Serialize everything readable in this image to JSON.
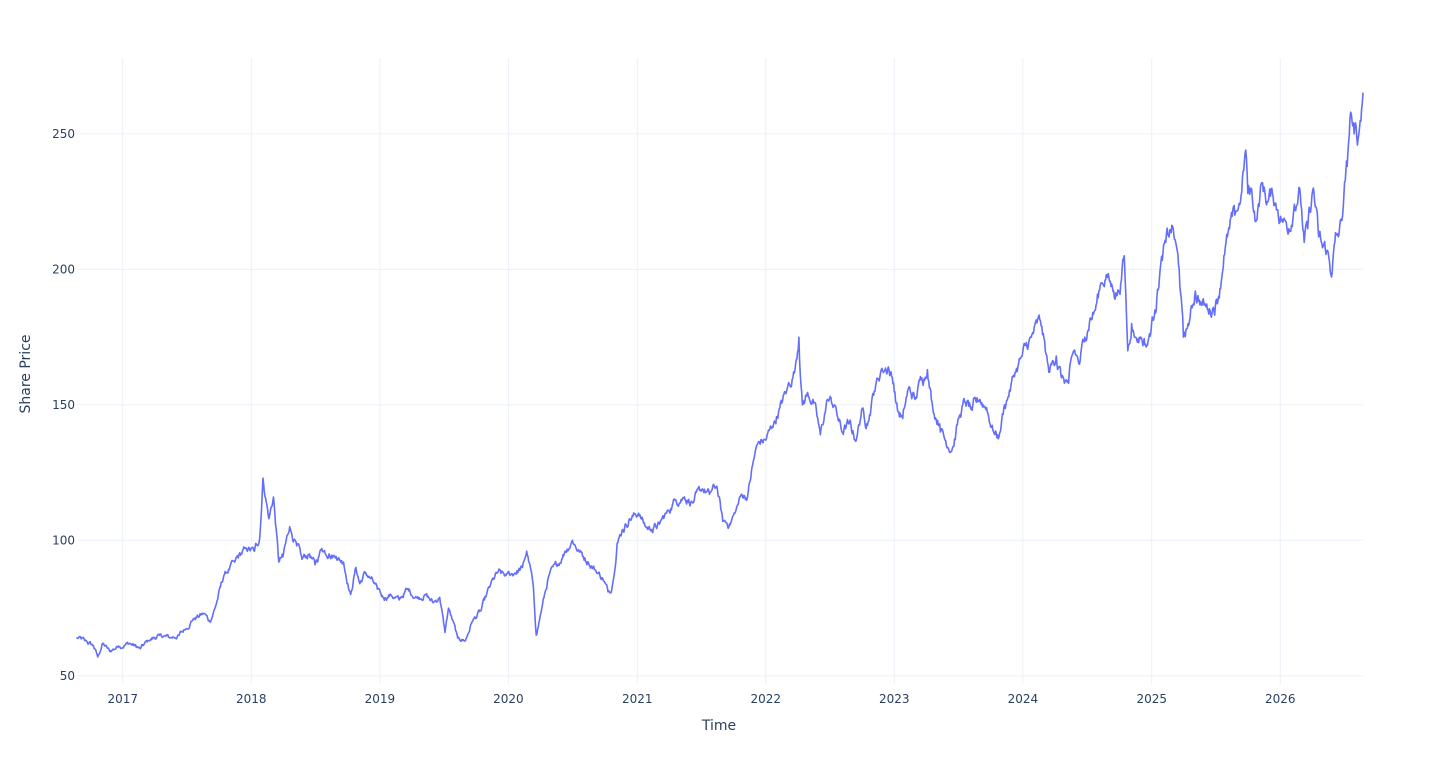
{
  "chart_data": {
    "type": "line",
    "title": "",
    "xlabel": "Time",
    "ylabel": "Share Price",
    "xlim": [
      "2016-08-24",
      "2026-08-24"
    ],
    "ylim": [
      47,
      278
    ],
    "x_ticks": [
      "2017",
      "2018",
      "2019",
      "2020",
      "2021",
      "2022",
      "2023",
      "2024",
      "2025",
      "2026"
    ],
    "y_ticks": [
      50,
      100,
      150,
      200,
      250
    ],
    "grid": true,
    "legend": "none",
    "line_color": "#636efa",
    "series": [
      {
        "x": [
          "2016-08-24",
          "2016-09-15",
          "2016-10-10",
          "2016-10-22",
          "2016-11-05",
          "2016-11-25",
          "2016-12-20",
          "2017-01-20",
          "2017-02-20",
          "2017-03-15",
          "2017-04-15",
          "2017-05-15",
          "2017-06-10",
          "2017-06-25",
          "2017-07-20",
          "2017-08-20",
          "2017-09-05",
          "2017-09-20",
          "2017-10-15",
          "2017-11-15",
          "2017-12-15",
          "2018-01-10",
          "2018-01-25",
          "2018-02-03",
          "2018-02-20",
          "2018-03-05",
          "2018-03-20",
          "2018-04-01",
          "2018-04-20",
          "2018-05-10",
          "2018-05-25",
          "2018-06-15",
          "2018-07-01",
          "2018-07-20",
          "2018-08-10",
          "2018-08-30",
          "2018-09-20",
          "2018-10-10",
          "2018-10-25",
          "2018-11-05",
          "2018-11-20",
          "2018-12-05",
          "2018-12-25",
          "2019-01-10",
          "2019-02-01",
          "2019-02-25",
          "2019-03-20",
          "2019-04-15",
          "2019-05-10",
          "2019-06-01",
          "2019-06-20",
          "2019-07-05",
          "2019-07-15",
          "2019-08-10",
          "2019-09-01",
          "2019-09-20",
          "2019-10-15",
          "2019-11-10",
          "2019-12-01",
          "2019-12-25",
          "2020-01-20",
          "2020-02-10",
          "2020-02-22",
          "2020-03-10",
          "2020-03-20",
          "2020-04-05",
          "2020-04-25",
          "2020-05-20",
          "2020-06-10",
          "2020-07-01",
          "2020-07-20",
          "2020-08-15",
          "2020-09-05",
          "2020-09-25",
          "2020-10-10",
          "2020-10-22",
          "2020-11-05",
          "2020-11-20",
          "2020-12-10",
          "2021-01-05",
          "2021-01-25",
          "2021-02-10",
          "2021-03-05",
          "2021-03-25",
          "2021-04-20",
          "2021-05-15",
          "2021-06-10",
          "2021-07-05",
          "2021-07-25",
          "2021-08-15",
          "2021-09-01",
          "2021-09-20",
          "2021-10-05",
          "2021-10-25",
          "2021-11-10",
          "2021-11-25",
          "2021-12-10",
          "2022-01-01",
          "2022-01-20",
          "2022-02-10",
          "2022-03-01",
          "2022-03-25",
          "2022-04-05",
          "2022-04-15",
          "2022-04-28",
          "2022-05-15",
          "2022-06-05",
          "2022-06-25",
          "2022-07-15",
          "2022-08-05",
          "2022-08-25",
          "2022-09-15",
          "2022-09-30",
          "2022-10-15",
          "2022-11-05",
          "2022-11-25",
          "2022-12-15",
          "2022-12-30",
          "2023-01-10",
          "2023-01-25",
          "2023-02-10",
          "2023-03-01",
          "2023-03-20",
          "2023-04-05",
          "2023-04-20",
          "2023-05-10",
          "2023-05-25",
          "2023-06-15",
          "2023-07-05",
          "2023-07-20",
          "2023-08-10",
          "2023-09-01",
          "2023-09-20",
          "2023-10-10",
          "2023-10-25",
          "2023-11-10",
          "2023-11-20",
          "2023-12-10",
          "2023-12-30",
          "2024-01-25",
          "2024-02-20",
          "2024-03-15",
          "2024-04-05",
          "2024-04-20",
          "2024-05-10",
          "2024-05-25",
          "2024-06-10",
          "2024-06-25",
          "2024-07-10",
          "2024-07-25",
          "2024-08-10",
          "2024-08-25",
          "2024-09-15",
          "2024-10-01",
          "2024-10-15",
          "2024-10-25",
          "2024-11-05",
          "2024-11-15",
          "2024-12-01",
          "2024-12-20",
          "2025-01-10",
          "2025-01-25",
          "2025-02-10",
          "2025-03-01",
          "2025-03-20",
          "2025-04-01",
          "2025-04-10",
          "2025-04-20",
          "2025-05-05",
          "2025-05-20",
          "2025-06-10",
          "2025-06-25",
          "2025-07-10",
          "2025-07-25",
          "2025-08-10",
          "2025-08-25",
          "2025-09-10",
          "2025-09-25",
          "2025-10-01",
          "2025-10-10",
          "2025-10-25",
          "2025-11-10",
          "2025-11-25",
          "2025-12-10",
          "2025-12-25",
          "2026-01-10",
          "2026-01-25",
          "2026-02-10",
          "2026-02-25",
          "2026-03-10",
          "2026-03-20",
          "2026-04-05",
          "2026-04-20",
          "2026-05-01",
          "2026-05-15",
          "2026-05-25",
          "2026-06-05",
          "2026-06-15",
          "2026-06-25",
          "2026-07-01",
          "2026-07-10",
          "2026-07-20",
          "2026-07-30",
          "2026-08-10",
          "2026-08-24"
        ],
        "y": [
          64,
          63,
          61,
          57,
          62,
          59,
          61,
          62,
          60,
          63,
          65,
          64,
          65,
          67,
          71,
          73,
          70,
          75,
          87,
          92,
          97,
          96,
          101,
          123,
          108,
          116,
          92,
          94,
          105,
          98,
          93,
          95,
          91,
          97,
          95,
          94,
          92,
          80,
          90,
          84,
          88,
          86,
          82,
          79,
          80,
          78,
          82,
          79,
          80,
          77,
          79,
          66,
          75,
          64,
          63,
          70,
          74,
          83,
          88,
          87,
          88,
          90,
          96,
          85,
          65,
          75,
          87,
          91,
          96,
          100,
          96,
          92,
          89,
          86,
          81,
          83,
          99,
          104,
          108,
          110,
          105,
          104,
          106,
          110,
          115,
          116,
          114,
          119,
          117,
          120,
          107,
          106,
          110,
          117,
          116,
          128,
          136,
          137,
          142,
          149,
          155,
          163,
          175,
          150,
          154,
          152,
          139,
          152,
          150,
          140,
          143,
          137,
          148,
          143,
          155,
          163,
          164,
          158,
          148,
          145,
          156,
          152,
          160,
          163,
          149,
          143,
          137,
          134,
          146,
          151,
          148,
          152,
          149,
          140,
          138,
          150,
          153,
          162,
          168,
          175,
          181,
          162,
          168,
          160,
          158,
          170,
          165,
          175,
          182,
          185,
          195,
          198,
          192,
          192,
          205,
          170,
          180,
          175,
          175,
          172,
          185,
          200,
          210,
          216,
          200,
          175,
          178,
          182,
          192,
          188,
          185,
          186,
          190,
          205,
          215,
          220,
          225,
          244,
          228,
          230,
          218,
          232,
          225,
          228,
          222,
          218,
          215,
          224,
          230,
          210,
          215,
          230,
          212,
          208,
          207,
          198,
          210,
          212,
          218,
          228,
          238,
          258,
          250,
          248,
          265
        ]
      }
    ]
  }
}
